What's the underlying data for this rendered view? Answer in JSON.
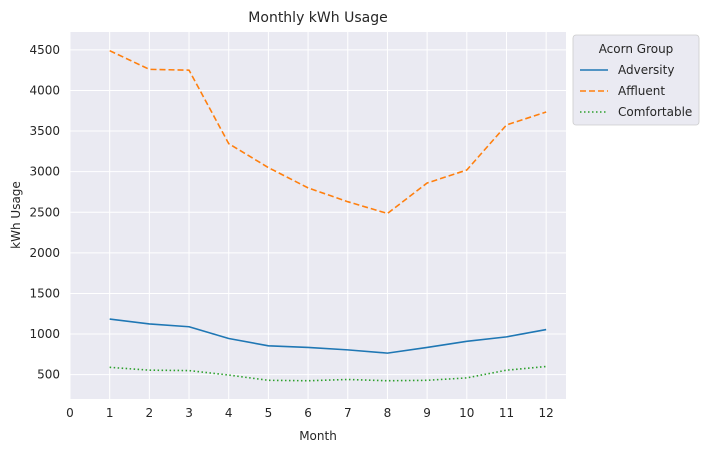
{
  "chart_data": {
    "type": "line",
    "title": "Monthly kWh Usage",
    "xlabel": "Month",
    "ylabel": "kWh Usage",
    "xlim": [
      0,
      12.5
    ],
    "ylim": [
      200,
      4720
    ],
    "x_ticks": [
      0,
      1,
      2,
      3,
      4,
      5,
      6,
      7,
      8,
      9,
      10,
      11,
      12
    ],
    "y_ticks": [
      500,
      1000,
      1500,
      2000,
      2500,
      3000,
      3500,
      4000,
      4500
    ],
    "grid": true,
    "legend": {
      "title": "Acorn Group",
      "placement": "outside-top-right"
    },
    "x": [
      1,
      2,
      3,
      4,
      5,
      6,
      7,
      8,
      9,
      10,
      11,
      12
    ],
    "series": [
      {
        "name": "Adversity",
        "color": "#1f77b4",
        "dash": "solid",
        "values": [
          1185,
          1125,
          1090,
          945,
          855,
          835,
          805,
          765,
          835,
          910,
          965,
          1055
        ]
      },
      {
        "name": "Affluent",
        "color": "#ff7f0e",
        "dash": "dashed",
        "values": [
          4490,
          4260,
          4250,
          3345,
          3050,
          2800,
          2630,
          2485,
          2860,
          3020,
          3575,
          3735
        ]
      },
      {
        "name": "Comfortable",
        "color": "#2ca02c",
        "dash": "dotted",
        "values": [
          590,
          555,
          550,
          495,
          430,
          425,
          440,
          425,
          430,
          460,
          555,
          600
        ]
      }
    ]
  }
}
